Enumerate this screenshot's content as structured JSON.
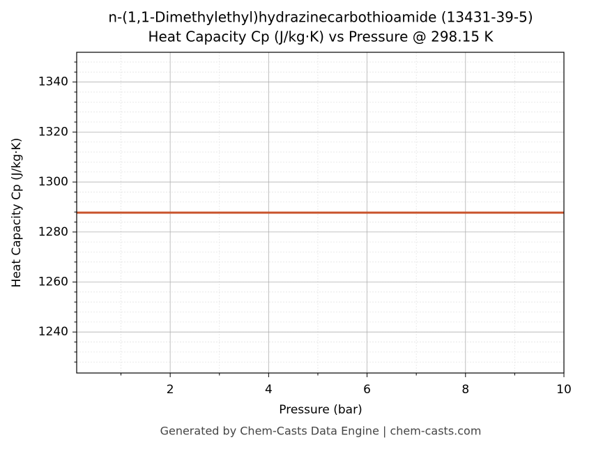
{
  "chart_data": {
    "type": "line",
    "title": "n-(1,1-Dimethylethyl)hydrazinecarbothioamide (13431-39-5)",
    "subtitle": "Heat Capacity Cp (J/kg·K) vs Pressure @ 298.15 K",
    "x_label": "Pressure (bar)",
    "y_label": "Heat Capacity Cp (J/kg·K)",
    "footer": "Generated by Chem-Casts Data Engine | chem-casts.com",
    "x": [
      0.1,
      10
    ],
    "series": [
      {
        "name": "Cp",
        "color": "#c8532b",
        "values": [
          1287.75,
          1287.75
        ]
      }
    ],
    "xlim": [
      0.1,
      10
    ],
    "ylim": [
      1223.6,
      1351.9
    ],
    "xticks": [
      2,
      4,
      6,
      8,
      10
    ],
    "yticks": [
      1240,
      1260,
      1280,
      1300,
      1320,
      1340
    ],
    "x_minor_ticks": [
      1,
      3,
      5,
      7,
      9
    ],
    "y_minor_ticks": [
      1228,
      1232,
      1236,
      1244,
      1248,
      1252,
      1256,
      1264,
      1268,
      1272,
      1276,
      1284,
      1288,
      1292,
      1296,
      1304,
      1308,
      1312,
      1316,
      1324,
      1328,
      1332,
      1336,
      1344,
      1348
    ],
    "grid": true
  }
}
